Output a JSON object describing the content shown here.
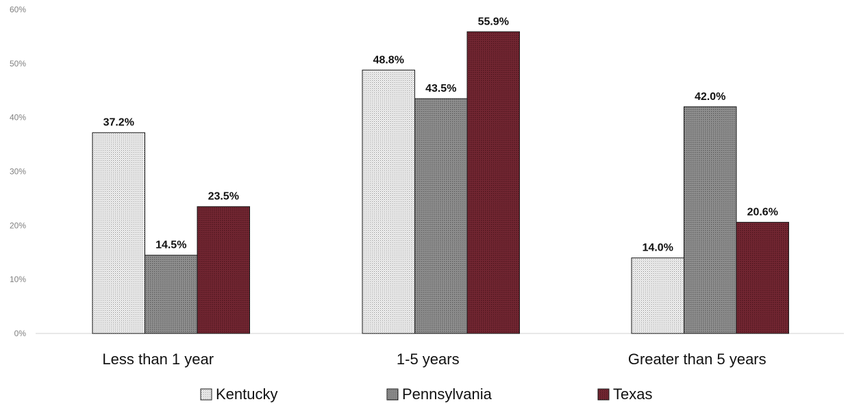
{
  "chart_data": {
    "type": "bar",
    "categories": [
      "Less than 1 year",
      "1-5 years",
      "Greater than 5 years"
    ],
    "series": [
      {
        "name": "Kentucky",
        "values": [
          37.2,
          48.8,
          14.0
        ],
        "color": "#e6e6e6",
        "pattern": "fine-dots-light"
      },
      {
        "name": "Pennsylvania",
        "values": [
          14.5,
          43.5,
          42.0
        ],
        "color": "#8a8a8a",
        "pattern": "dots-gray"
      },
      {
        "name": "Texas",
        "values": [
          23.5,
          55.9,
          20.6
        ],
        "color": "#6b2430",
        "pattern": "dots-maroon"
      }
    ],
    "data_labels": [
      [
        "37.2%",
        "48.8%",
        "14.0%"
      ],
      [
        "14.5%",
        "43.5%",
        "42.0%"
      ],
      [
        "23.5%",
        "55.9%",
        "20.6%"
      ]
    ],
    "ylim": [
      0,
      60
    ],
    "yticks": [
      0,
      10,
      20,
      30,
      40,
      50,
      60
    ],
    "ytick_labels": [
      "0%",
      "10%",
      "20%",
      "30%",
      "40%",
      "50%",
      "60%"
    ],
    "grid": false,
    "legend_position": "bottom",
    "title": "",
    "xlabel": "",
    "ylabel": ""
  }
}
